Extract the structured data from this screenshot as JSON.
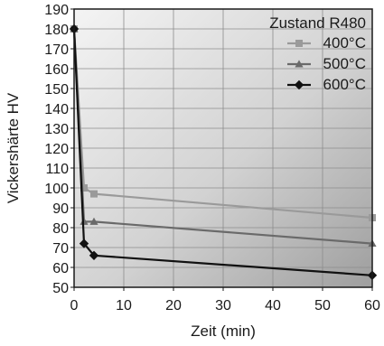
{
  "chart_data": {
    "type": "line",
    "title": "",
    "xlabel": "Zeit (min)",
    "ylabel": "Vickershärte HV",
    "xlim": [
      0,
      60
    ],
    "ylim": [
      50,
      190
    ],
    "xticks": [
      0,
      10,
      20,
      30,
      40,
      50,
      60
    ],
    "yticks": [
      50,
      60,
      70,
      80,
      90,
      100,
      110,
      120,
      130,
      140,
      150,
      160,
      170,
      180,
      190
    ],
    "grid": true,
    "legend": {
      "title": "Zustand R480",
      "position": "top-right"
    },
    "series": [
      {
        "name": "400°C",
        "color": "#9a9a9a",
        "marker": "square",
        "x": [
          0,
          2,
          4,
          60
        ],
        "y": [
          180,
          100,
          97,
          85
        ]
      },
      {
        "name": "500°C",
        "color": "#6a6a6a",
        "marker": "triangle",
        "x": [
          0,
          2,
          4,
          60
        ],
        "y": [
          180,
          83,
          83,
          72
        ]
      },
      {
        "name": "600°C",
        "color": "#111111",
        "marker": "diamond",
        "x": [
          0,
          2,
          4,
          60
        ],
        "y": [
          180,
          72,
          66,
          56
        ]
      }
    ]
  }
}
